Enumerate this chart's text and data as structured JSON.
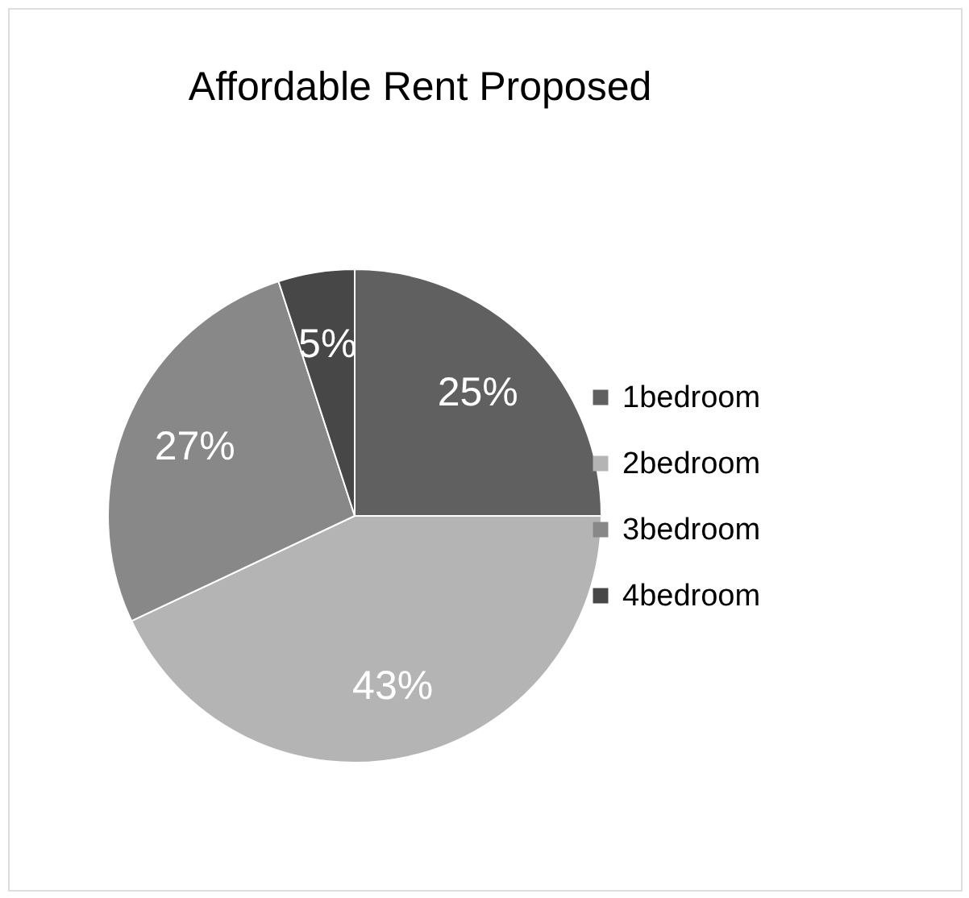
{
  "chart_data": {
    "type": "pie",
    "title": "Affordable Rent Proposed",
    "categories": [
      "1bedroom",
      "2bedroom",
      "3bedroom",
      "4bedroom"
    ],
    "values": [
      25,
      43,
      27,
      5
    ],
    "value_labels": [
      "25%",
      "43%",
      "27%",
      "5%"
    ],
    "colors": [
      "#606060",
      "#b4b4b4",
      "#888888",
      "#474747"
    ],
    "legend": "right"
  }
}
